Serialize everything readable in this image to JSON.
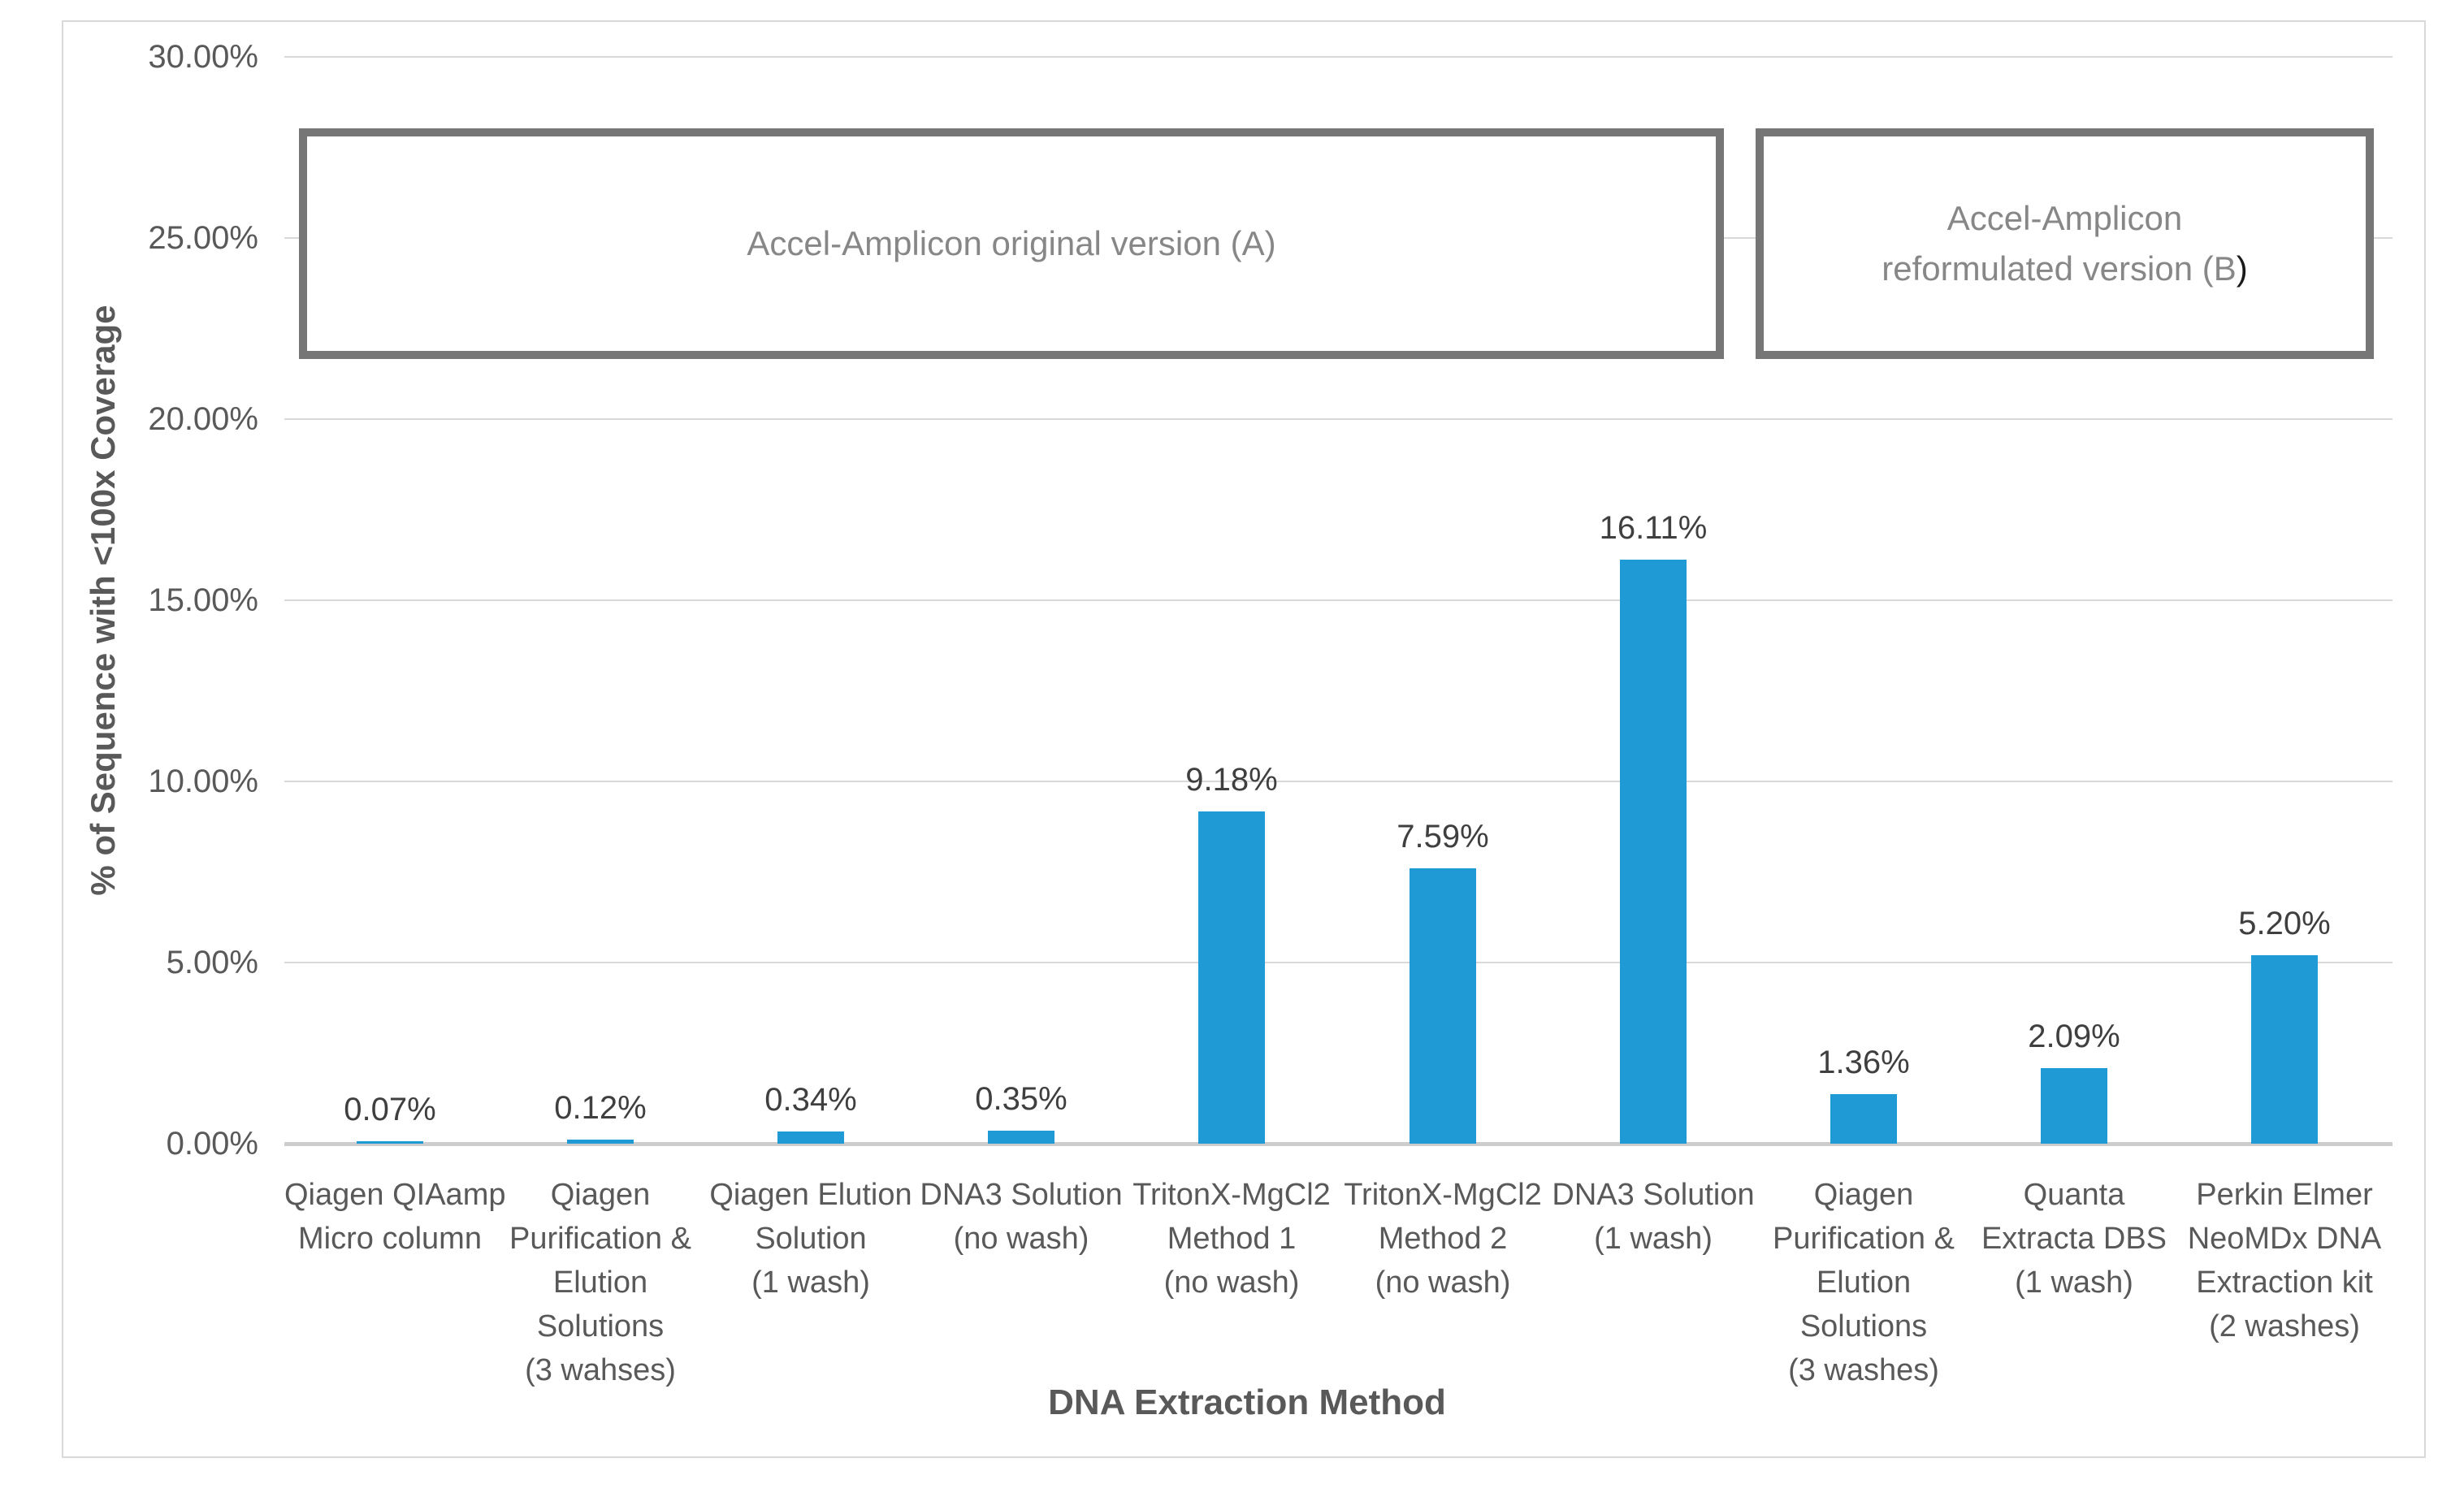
{
  "chart_data": {
    "type": "bar",
    "title": "",
    "xlabel": "DNA Extraction Method",
    "ylabel": "% of Sequence with <100x Coverage",
    "ylim": [
      0,
      30
    ],
    "grid": true,
    "legend": "none",
    "bar_color": "#1F9AD5",
    "y_ticks": [
      {
        "label": "30.00%",
        "value": 30
      },
      {
        "label": "25.00%",
        "value": 25
      },
      {
        "label": "20.00%",
        "value": 20
      },
      {
        "label": "15.00%",
        "value": 15
      },
      {
        "label": "10.00%",
        "value": 10
      },
      {
        "label": "5.00%",
        "value": 5
      },
      {
        "label": "0.00%",
        "value": 0
      }
    ],
    "categories": [
      [
        "Qiagen QIAamp",
        "Micro column"
      ],
      [
        "Qiagen",
        "Purification &",
        "Elution",
        "Solutions",
        "(3 wahses)"
      ],
      [
        "Qiagen Elution",
        "Solution",
        "(1 wash)"
      ],
      [
        "DNA3 Solution",
        "(no wash)"
      ],
      [
        "TritonX-MgCl2",
        "Method 1",
        "(no wash)"
      ],
      [
        "TritonX-MgCl2",
        "Method 2",
        "(no wash)"
      ],
      [
        "DNA3 Solution",
        "(1 wash)"
      ],
      [
        "Qiagen",
        "Purification &",
        "Elution",
        "Solutions",
        "(3 washes)"
      ],
      [
        "Quanta",
        "Extracta DBS",
        "(1 wash)"
      ],
      [
        "Perkin Elmer",
        "NeoMDx DNA",
        "Extraction kit",
        "(2 washes)"
      ]
    ],
    "values": [
      0.07,
      0.12,
      0.34,
      0.35,
      9.18,
      7.59,
      16.11,
      1.36,
      2.09,
      5.2
    ],
    "value_labels": [
      "0.07%",
      "0.12%",
      "0.34%",
      "0.35%",
      "9.18%",
      "7.59%",
      "16.11%",
      "1.36%",
      "2.09%",
      "5.20%"
    ],
    "annotations": [
      {
        "lines": [
          "Accel-Amplicon original version (A)"
        ],
        "dark_suffix": "",
        "from_category": 0,
        "to_category": 6
      },
      {
        "lines": [
          "Accel-Amplicon",
          "reformulated version (B"
        ],
        "dark_suffix": ")",
        "from_category": 7,
        "to_category": 9
      }
    ]
  }
}
